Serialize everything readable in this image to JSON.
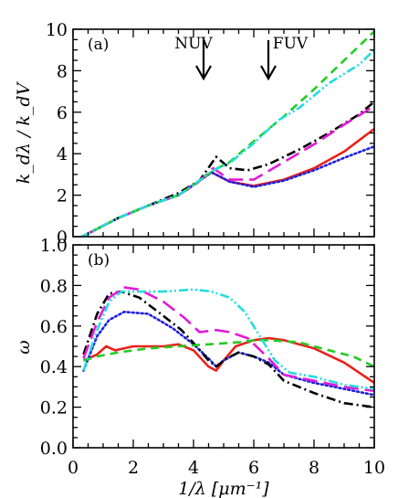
{
  "chart_data": [
    {
      "type": "line",
      "panel_label": "(a)",
      "xlabel": "1/λ [μm⁻¹]",
      "ylabel": "k_dλ / k_dV",
      "xlim": [
        0,
        10
      ],
      "ylim": [
        0,
        10
      ],
      "x_ticks": [
        "0",
        "2",
        "4",
        "6",
        "8",
        "10"
      ],
      "y_ticks": [
        "0",
        "2",
        "4",
        "6",
        "8",
        "10"
      ],
      "annotations": [
        {
          "text": "NUV",
          "x": 4.35
        },
        {
          "text": "FUV",
          "x": 6.5
        }
      ],
      "series": [
        {
          "color": "#e8221b",
          "dash": "solid",
          "points": [
            [
              0.3,
              0
            ],
            [
              0.7,
              0.3
            ],
            [
              1.5,
              0.9
            ],
            [
              2.5,
              1.5
            ],
            [
              3.5,
              2.0
            ],
            [
              4.0,
              2.5
            ],
            [
              4.6,
              3.1
            ],
            [
              5.2,
              2.65
            ],
            [
              6.0,
              2.45
            ],
            [
              7.0,
              2.75
            ],
            [
              8.0,
              3.3
            ],
            [
              9.0,
              4.1
            ],
            [
              10.0,
              5.2
            ]
          ]
        },
        {
          "color": "#2020dd",
          "dash": "dotted",
          "points": [
            [
              0.3,
              0
            ],
            [
              0.7,
              0.3
            ],
            [
              1.5,
              0.9
            ],
            [
              2.5,
              1.5
            ],
            [
              3.5,
              2.0
            ],
            [
              4.0,
              2.5
            ],
            [
              4.6,
              3.1
            ],
            [
              5.2,
              2.65
            ],
            [
              6.0,
              2.4
            ],
            [
              7.0,
              2.7
            ],
            [
              8.0,
              3.2
            ],
            [
              9.0,
              3.8
            ],
            [
              10.0,
              4.35
            ]
          ]
        },
        {
          "color": "#000000",
          "dash": "dashdot",
          "points": [
            [
              0.3,
              0
            ],
            [
              0.7,
              0.3
            ],
            [
              1.5,
              0.9
            ],
            [
              2.5,
              1.5
            ],
            [
              3.5,
              2.1
            ],
            [
              4.2,
              2.7
            ],
            [
              4.75,
              3.85
            ],
            [
              5.2,
              3.3
            ],
            [
              5.8,
              3.2
            ],
            [
              6.5,
              3.5
            ],
            [
              7.5,
              4.2
            ],
            [
              8.5,
              5.0
            ],
            [
              9.5,
              5.9
            ],
            [
              10.0,
              6.5
            ]
          ]
        },
        {
          "color": "#e21ad9",
          "dash": "longdash",
          "points": [
            [
              0.3,
              0
            ],
            [
              0.7,
              0.3
            ],
            [
              1.5,
              0.9
            ],
            [
              2.5,
              1.5
            ],
            [
              3.5,
              2.0
            ],
            [
              4.1,
              2.55
            ],
            [
              4.65,
              3.3
            ],
            [
              5.2,
              2.75
            ],
            [
              6.0,
              2.75
            ],
            [
              7.0,
              3.6
            ],
            [
              8.0,
              4.45
            ],
            [
              9.0,
              5.4
            ],
            [
              10.0,
              6.3
            ]
          ]
        },
        {
          "color": "#22cc22",
          "dash": "dashed",
          "points": [
            [
              0.3,
              0
            ],
            [
              0.7,
              0.3
            ],
            [
              1.5,
              0.9
            ],
            [
              2.5,
              1.5
            ],
            [
              3.5,
              2.0
            ],
            [
              4.1,
              2.6
            ],
            [
              4.65,
              3.2
            ],
            [
              5.2,
              3.6
            ],
            [
              6.0,
              4.6
            ],
            [
              7.0,
              5.8
            ],
            [
              8.0,
              7.1
            ],
            [
              9.0,
              8.5
            ],
            [
              10.0,
              9.9
            ]
          ]
        },
        {
          "color": "#22dddd",
          "dash": "dashdotdot",
          "points": [
            [
              0.3,
              0
            ],
            [
              0.7,
              0.3
            ],
            [
              1.5,
              0.9
            ],
            [
              2.5,
              1.5
            ],
            [
              3.5,
              2.0
            ],
            [
              4.1,
              2.6
            ],
            [
              4.65,
              3.2
            ],
            [
              5.2,
              3.55
            ],
            [
              6.0,
              4.5
            ],
            [
              6.8,
              5.6
            ],
            [
              7.5,
              6.2
            ],
            [
              8.5,
              7.4
            ],
            [
              9.5,
              8.3
            ],
            [
              10.0,
              9.0
            ]
          ]
        }
      ]
    },
    {
      "type": "line",
      "panel_label": "(b)",
      "xlabel": "1/λ [μm⁻¹]",
      "ylabel": "ω",
      "xlim": [
        0,
        10
      ],
      "ylim": [
        0,
        1
      ],
      "x_ticks": [
        "0",
        "2",
        "4",
        "6",
        "8",
        "10"
      ],
      "y_ticks": [
        "0.0",
        "0.2",
        "0.4",
        "0.6",
        "0.8",
        "1.0"
      ],
      "series": [
        {
          "color": "#e8221b",
          "dash": "solid",
          "points": [
            [
              0.35,
              0.43
            ],
            [
              0.8,
              0.46
            ],
            [
              1.1,
              0.5
            ],
            [
              1.4,
              0.48
            ],
            [
              2.0,
              0.5
            ],
            [
              3.0,
              0.5
            ],
            [
              3.5,
              0.51
            ],
            [
              4.0,
              0.48
            ],
            [
              4.5,
              0.4
            ],
            [
              4.75,
              0.38
            ],
            [
              5.0,
              0.43
            ],
            [
              5.4,
              0.5
            ],
            [
              6.0,
              0.53
            ],
            [
              6.5,
              0.54
            ],
            [
              7.0,
              0.53
            ],
            [
              8.0,
              0.49
            ],
            [
              9.0,
              0.42
            ],
            [
              10.0,
              0.32
            ]
          ]
        },
        {
          "color": "#2020dd",
          "dash": "dotted",
          "points": [
            [
              0.35,
              0.38
            ],
            [
              0.8,
              0.55
            ],
            [
              1.2,
              0.63
            ],
            [
              1.7,
              0.67
            ],
            [
              2.5,
              0.66
            ],
            [
              3.3,
              0.59
            ],
            [
              4.0,
              0.51
            ],
            [
              4.5,
              0.44
            ],
            [
              4.75,
              0.4
            ],
            [
              5.0,
              0.43
            ],
            [
              5.5,
              0.47
            ],
            [
              6.0,
              0.45
            ],
            [
              6.5,
              0.42
            ],
            [
              7.0,
              0.36
            ],
            [
              8.0,
              0.32
            ],
            [
              9.0,
              0.29
            ],
            [
              10.0,
              0.26
            ]
          ]
        },
        {
          "color": "#000000",
          "dash": "dashdot",
          "points": [
            [
              0.35,
              0.46
            ],
            [
              0.8,
              0.66
            ],
            [
              1.2,
              0.76
            ],
            [
              1.6,
              0.77
            ],
            [
              2.2,
              0.74
            ],
            [
              3.0,
              0.65
            ],
            [
              3.6,
              0.58
            ],
            [
              4.1,
              0.5
            ],
            [
              4.5,
              0.43
            ],
            [
              4.75,
              0.4
            ],
            [
              5.1,
              0.44
            ],
            [
              5.5,
              0.47
            ],
            [
              6.0,
              0.45
            ],
            [
              6.5,
              0.41
            ],
            [
              7.0,
              0.33
            ],
            [
              8.0,
              0.27
            ],
            [
              9.0,
              0.22
            ],
            [
              10.0,
              0.2
            ]
          ]
        },
        {
          "color": "#e21ad9",
          "dash": "longdash",
          "points": [
            [
              0.35,
              0.44
            ],
            [
              0.8,
              0.62
            ],
            [
              1.2,
              0.74
            ],
            [
              1.7,
              0.79
            ],
            [
              2.2,
              0.78
            ],
            [
              3.0,
              0.72
            ],
            [
              3.7,
              0.64
            ],
            [
              4.2,
              0.57
            ],
            [
              4.75,
              0.58
            ],
            [
              5.2,
              0.57
            ],
            [
              5.8,
              0.54
            ],
            [
              6.5,
              0.44
            ],
            [
              7.0,
              0.36
            ],
            [
              8.0,
              0.33
            ],
            [
              9.0,
              0.3
            ],
            [
              10.0,
              0.28
            ]
          ]
        },
        {
          "color": "#22cc22",
          "dash": "dashed",
          "points": [
            [
              0.35,
              0.43
            ],
            [
              0.8,
              0.45
            ],
            [
              1.5,
              0.47
            ],
            [
              2.5,
              0.49
            ],
            [
              3.5,
              0.5
            ],
            [
              4.5,
              0.51
            ],
            [
              5.5,
              0.52
            ],
            [
              6.0,
              0.53
            ],
            [
              6.5,
              0.53
            ],
            [
              7.5,
              0.52
            ],
            [
              8.5,
              0.48
            ],
            [
              9.3,
              0.45
            ],
            [
              10.0,
              0.4
            ]
          ]
        },
        {
          "color": "#22dddd",
          "dash": "dashdotdot",
          "points": [
            [
              0.35,
              0.38
            ],
            [
              0.8,
              0.58
            ],
            [
              1.2,
              0.72
            ],
            [
              1.6,
              0.77
            ],
            [
              2.2,
              0.77
            ],
            [
              3.0,
              0.77
            ],
            [
              4.0,
              0.78
            ],
            [
              4.6,
              0.77
            ],
            [
              5.2,
              0.74
            ],
            [
              5.7,
              0.67
            ],
            [
              6.2,
              0.55
            ],
            [
              6.7,
              0.43
            ],
            [
              7.2,
              0.37
            ],
            [
              8.0,
              0.35
            ],
            [
              9.0,
              0.31
            ],
            [
              10.0,
              0.29
            ]
          ]
        }
      ]
    }
  ]
}
